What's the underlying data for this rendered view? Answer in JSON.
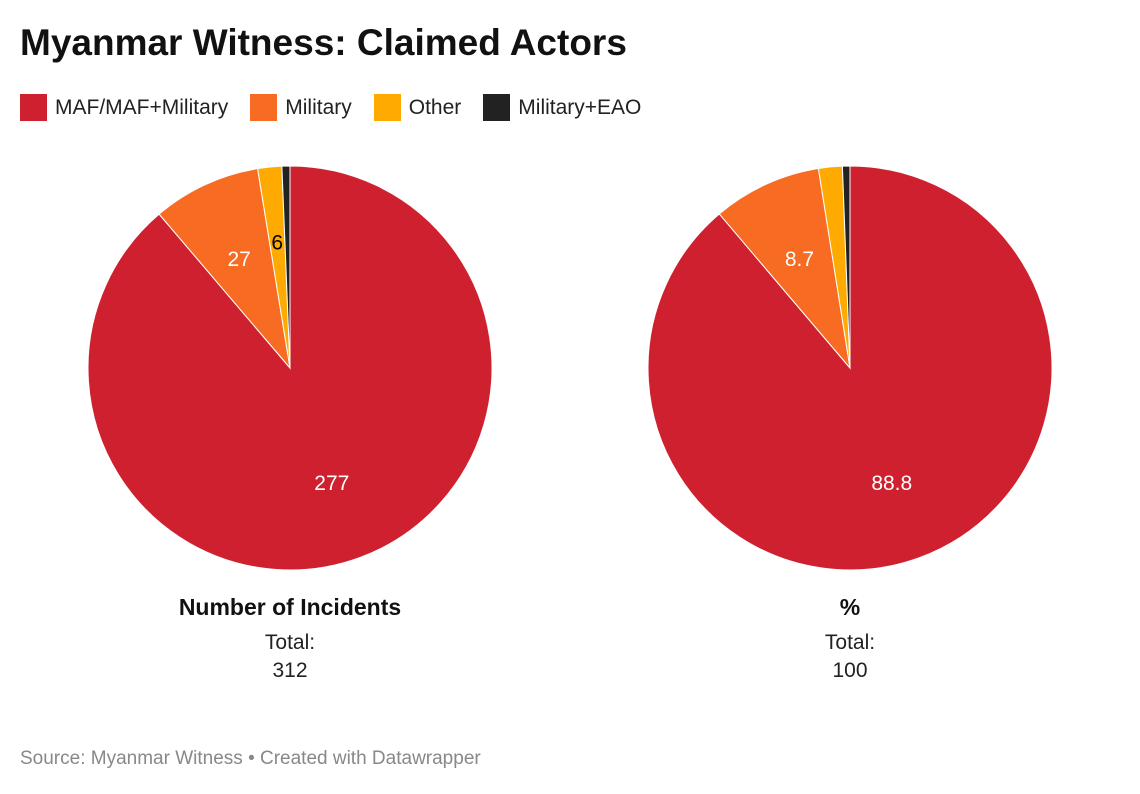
{
  "chart_data": {
    "type": "pie",
    "title": "Myanmar Witness: Claimed Actors",
    "legend": {
      "placement": "top-left"
    },
    "categories": [
      "MAF/MAF+Military",
      "Military",
      "Other",
      "Military+EAO"
    ],
    "colors": [
      "#cf202f",
      "#f76b22",
      "#ffaa00",
      "#222222"
    ],
    "label_colors": [
      "#ffffff",
      "#ffffff",
      "#000000",
      "#ffffff"
    ],
    "pies": [
      {
        "name": "Number of Incidents",
        "values": [
          277,
          27,
          6,
          2
        ],
        "labels": [
          "277",
          "27",
          "6",
          null
        ],
        "total_label": "Total:",
        "total": "312"
      },
      {
        "name": "%",
        "values": [
          88.8,
          8.7,
          1.9,
          0.6
        ],
        "labels": [
          "88.8",
          "8.7",
          null,
          null
        ],
        "total_label": "Total:",
        "total": "100"
      }
    ]
  },
  "source": "Source: Myanmar Witness • Created with Datawrapper"
}
